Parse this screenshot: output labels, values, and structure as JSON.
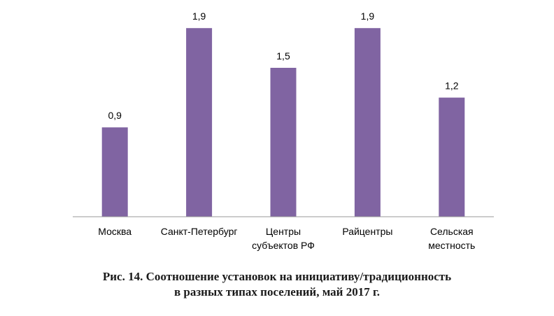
{
  "colors": {
    "bar": "#8064a2",
    "axis": "#9a9a9a",
    "text": "#000000"
  },
  "chart_data": {
    "type": "bar",
    "categories": [
      [
        "Москва"
      ],
      [
        "Санкт-Петербург"
      ],
      [
        "Центры",
        "субъектов РФ"
      ],
      [
        "Райцентры"
      ],
      [
        "Сельская",
        "местность"
      ]
    ],
    "values": [
      0.9,
      1.9,
      1.5,
      1.9,
      1.2
    ],
    "value_labels": [
      "0,9",
      "1,9",
      "1,5",
      "1,9",
      "1,2"
    ],
    "ylim": [
      0,
      2.0
    ],
    "grid": false,
    "legend": "none"
  },
  "caption": {
    "line1": "Рис. 14. Соотношение установок на инициативу/традиционность",
    "line2": "в разных типах поселений, май 2017  г."
  }
}
